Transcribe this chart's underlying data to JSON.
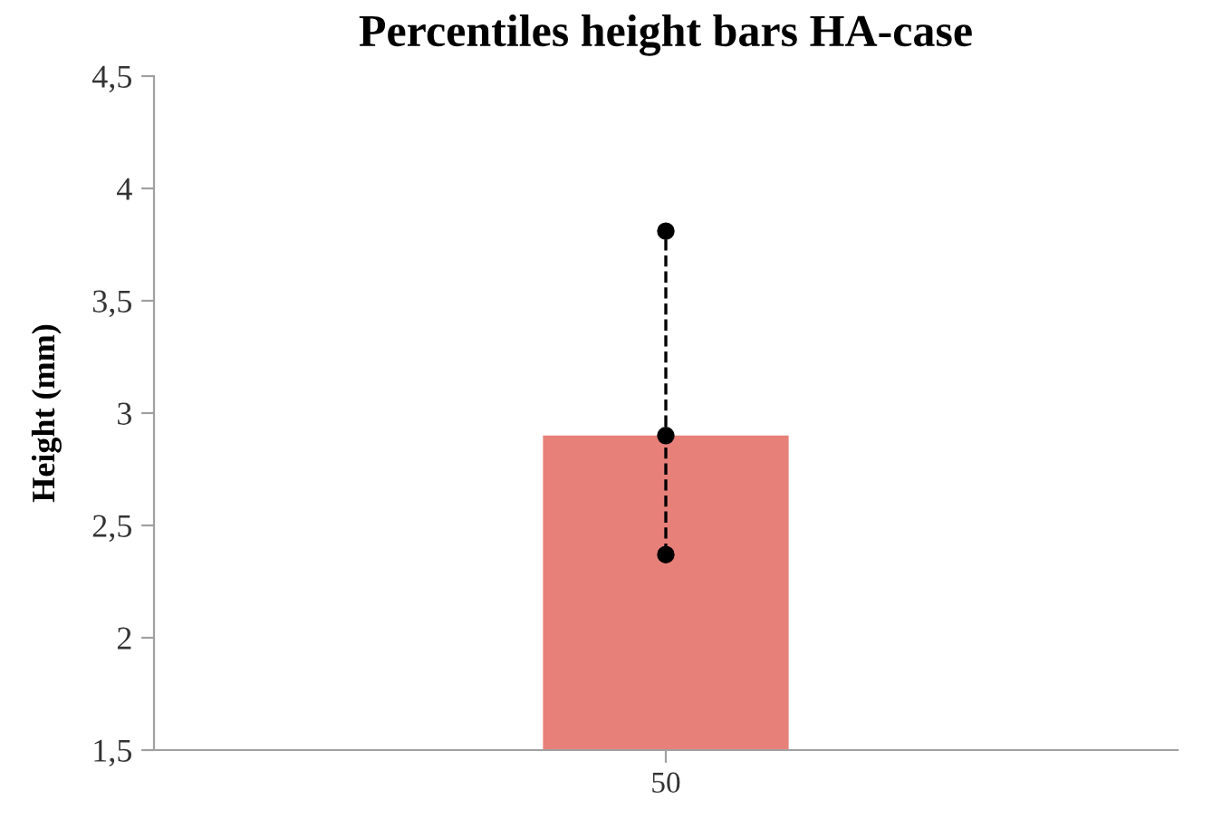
{
  "chart_data": {
    "type": "bar",
    "title": "Percentiles height bars HA-case",
    "ylabel": "Height (mm)",
    "categories": [
      "50"
    ],
    "series": [
      {
        "color": "#e8807a",
        "values": [
          2.9
        ]
      },
      {
        "type": "line",
        "x": [
          "50",
          "50",
          "50"
        ],
        "values": [
          2.37,
          2.9,
          3.81
        ],
        "color": "#000000",
        "marker": "circle",
        "line_style": "dashed"
      }
    ],
    "ylim": [
      1.5,
      4.5
    ],
    "yticks": [
      {
        "value": 1.5,
        "label": "1,5"
      },
      2,
      {
        "value": 2.5,
        "label": "2,5"
      },
      3,
      {
        "value": 3.5,
        "label": "3,5"
      },
      4,
      {
        "value": 4.5,
        "label": "4,5"
      }
    ],
    "grid": false,
    "legend": false
  }
}
